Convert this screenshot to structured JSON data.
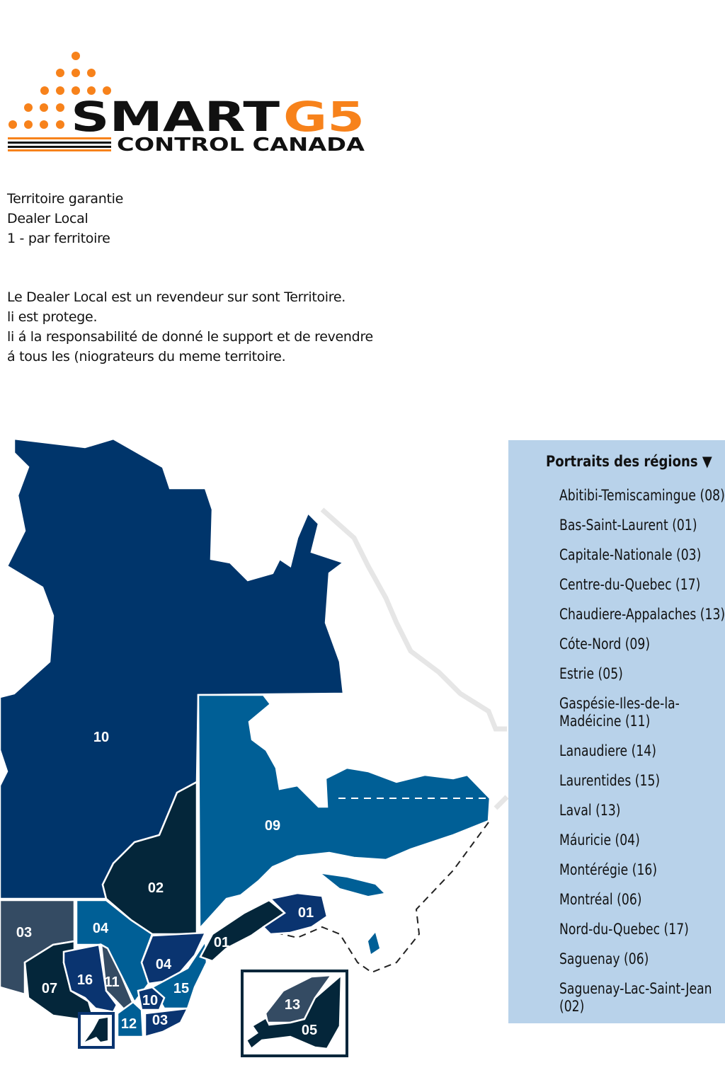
{
  "logo": {
    "brand_main": "SMART",
    "brand_accent": "G5",
    "tagline": "CONTROL CANADA",
    "accent_color": "#f7821b"
  },
  "intro": {
    "lines": [
      "Territoire garantie",
      "Dealer Local",
      "1 - par ferritoire"
    ],
    "paragraph": [
      "Le Dealer Local est un revendeur sur sont Territoire.",
      "li est protege.",
      "li á la responsabilité de donné le support et de revendre",
      "á tous les (niograteurs du meme territoire."
    ]
  },
  "map": {
    "labels": {
      "r10": "10",
      "r09": "09",
      "r02": "02",
      "r03a": "03",
      "r04a": "04",
      "r07": "07",
      "r16": "16",
      "r11": "11",
      "r04b": "04",
      "r15": "15",
      "r10b": "10",
      "r12": "12",
      "r03b": "03",
      "r01a": "01",
      "r01b": "01",
      "r13": "13",
      "r05": "05"
    },
    "colors": {
      "navy": "#00356b",
      "dark": "#04263a",
      "blue": "#005f96",
      "slate": "#344b63",
      "deep": "#0a3470"
    }
  },
  "panel": {
    "title": "Portraits des régions ▼",
    "items": [
      "Abitibi-Temiscamingue (08)",
      "Bas-Saint-Laurent (01)",
      "Capitale-Nationale (03)",
      "Centre-du-Quebec (17)",
      "Chaudiere-Appalaches (13)",
      "Cóte-Nord (09)",
      "Estrie (05)",
      "Gaspésie-Iles-de-la-Madéicine (11)",
      "Lanaudiere (14)",
      "Laurentides (15)",
      "Laval (13)",
      "Máuricie (04)",
      "Montérégie (16)",
      "Montréal (06)",
      "Nord-du-Quebec (17)",
      "Saguenay (06)",
      "Saguenay-Lac-Saint-Jean (02)"
    ]
  }
}
